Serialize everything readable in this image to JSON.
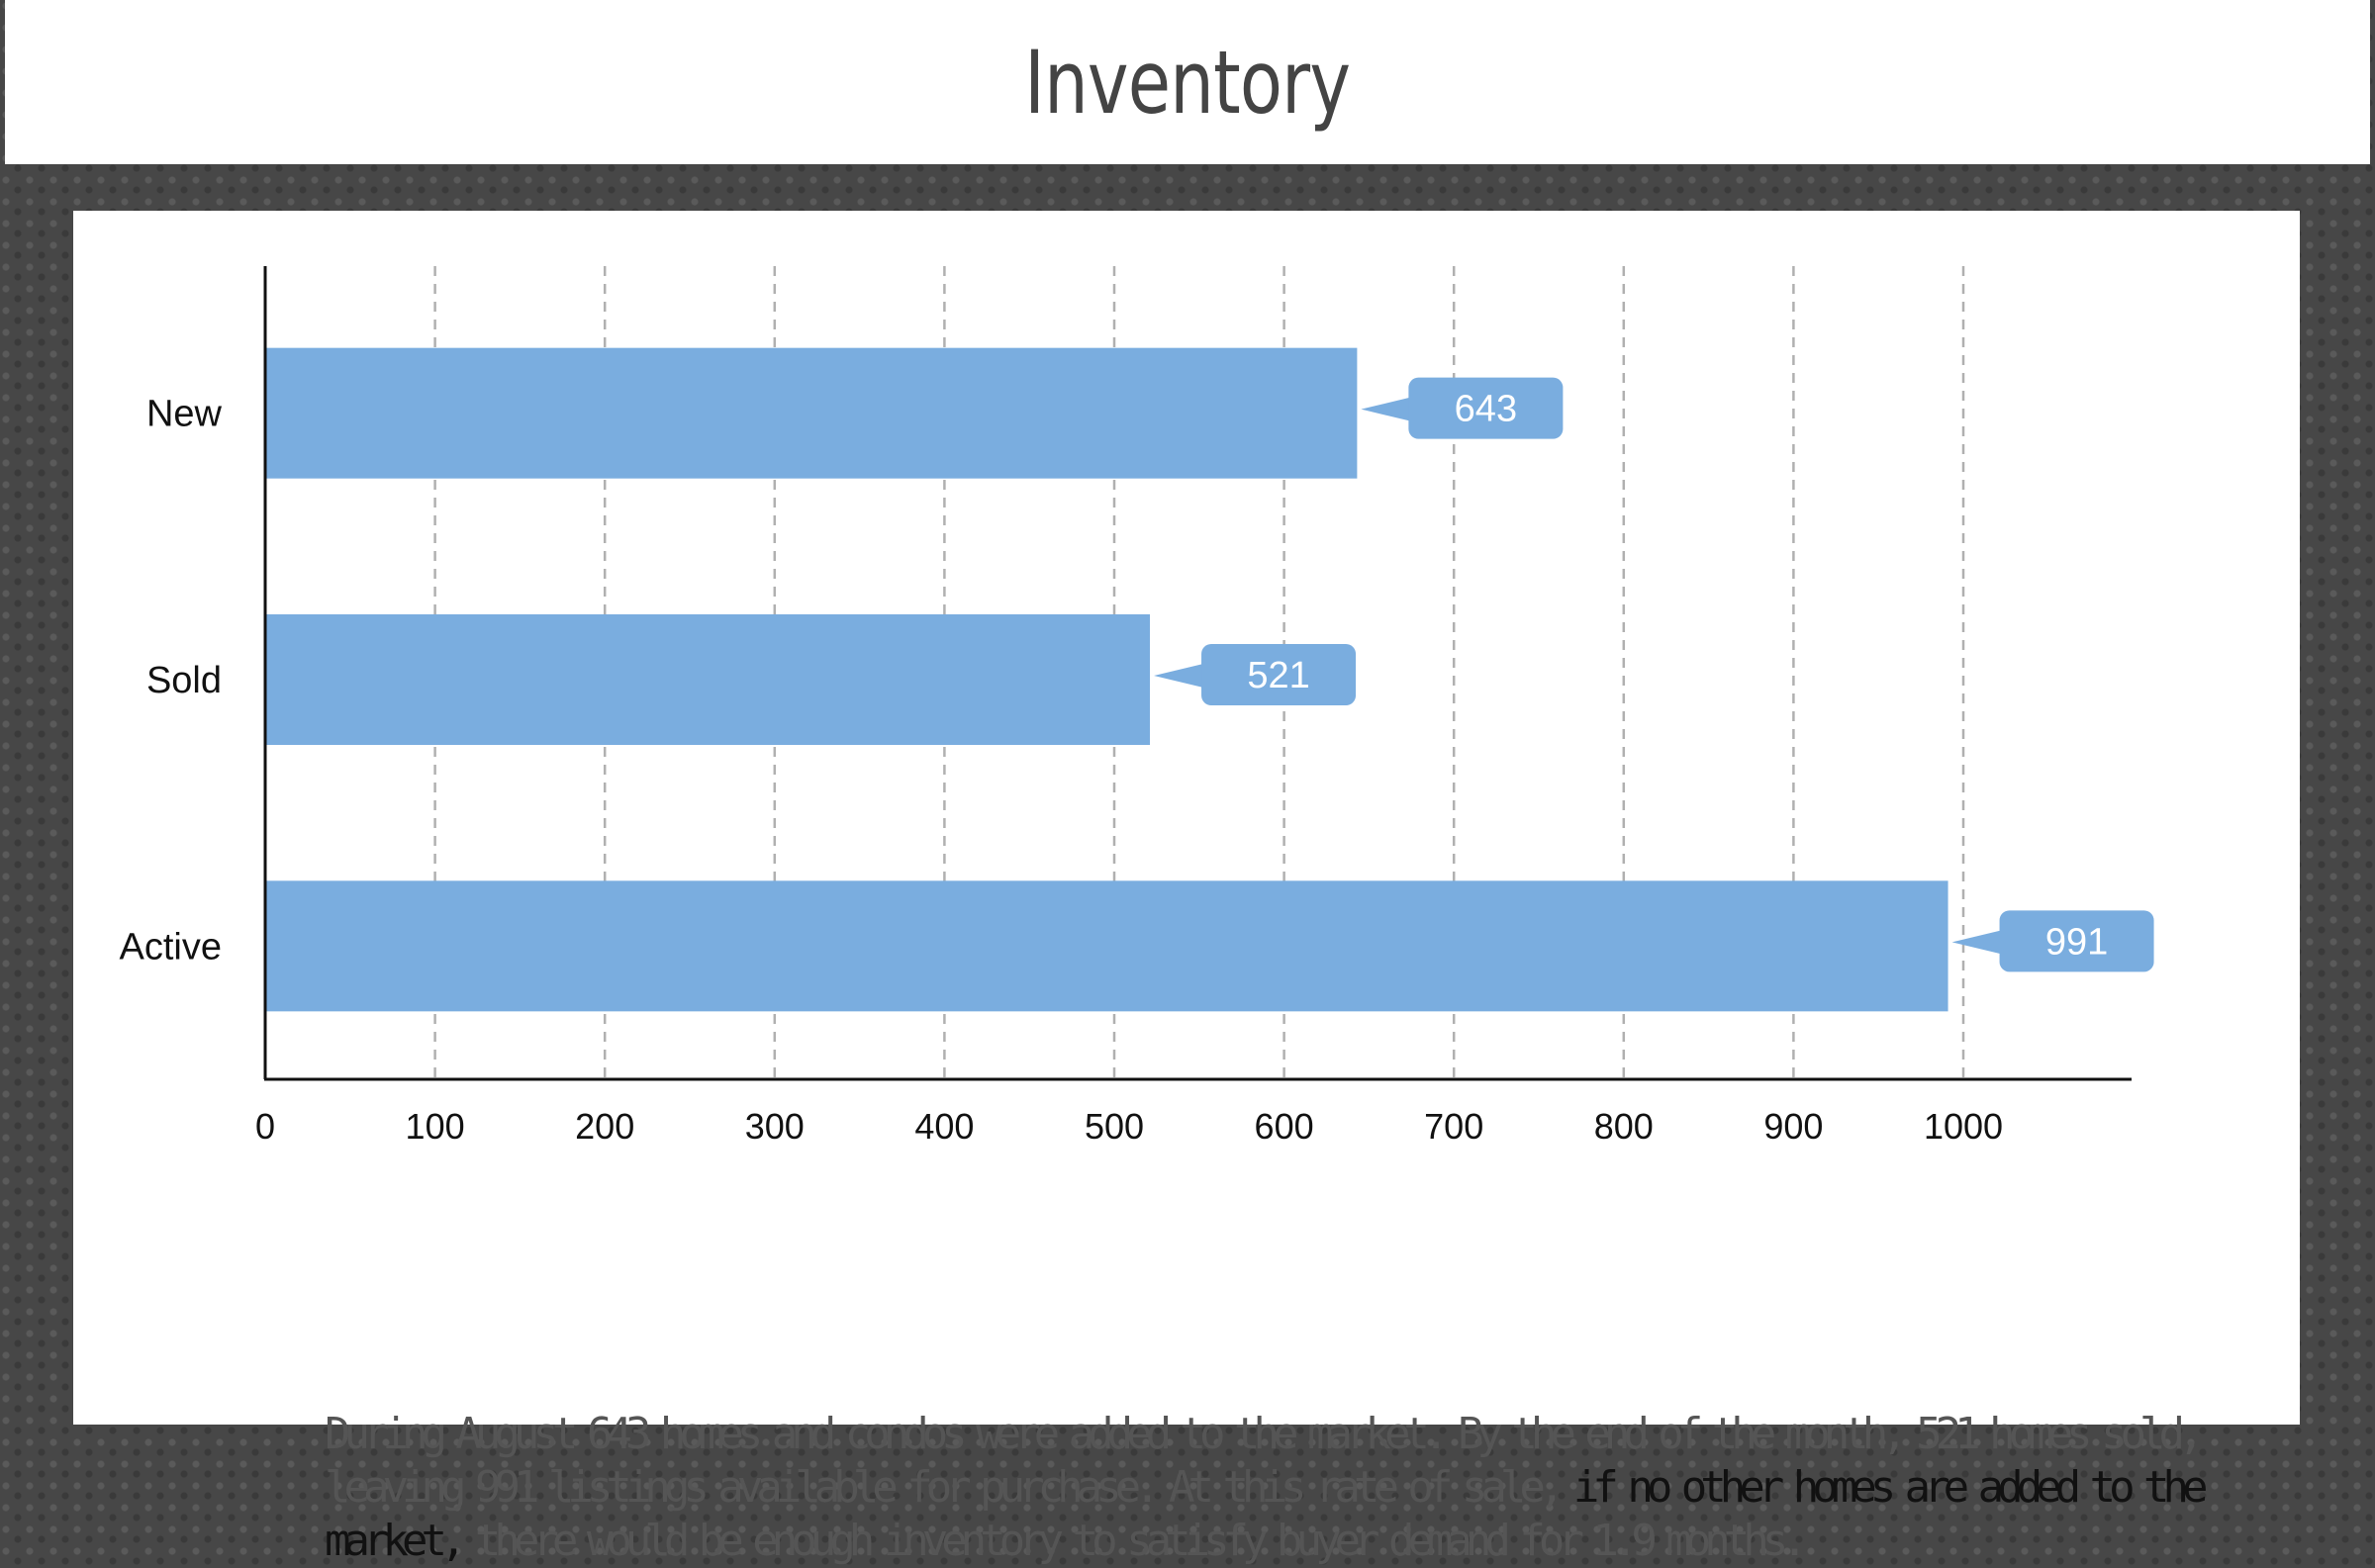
{
  "header": {
    "title": "Inventory"
  },
  "chart_data": {
    "type": "bar",
    "orientation": "horizontal",
    "categories": [
      "New",
      "Sold",
      "Active"
    ],
    "values": [
      643,
      521,
      991
    ],
    "data_labels": [
      "643",
      "521",
      "991"
    ],
    "xlim": [
      0,
      1100
    ],
    "xticks": [
      0,
      100,
      200,
      300,
      400,
      500,
      600,
      700,
      800,
      900,
      1000
    ],
    "grid": "vertical dashed",
    "bar_color": "#7aaddf",
    "grid_color": "#b0b0b0",
    "axis_color": "#111111"
  },
  "caption": {
    "part1": "During August 643 homes and condos were added to the market. By the end of the month, 521 homes sold,  leaving 991 listings available for purchase. At this rate of sale, ",
    "emphasis": "if no other homes are added to the market,",
    "part2": "  there would be enough inventory to satisfy buyer demand for 1.9 months."
  }
}
